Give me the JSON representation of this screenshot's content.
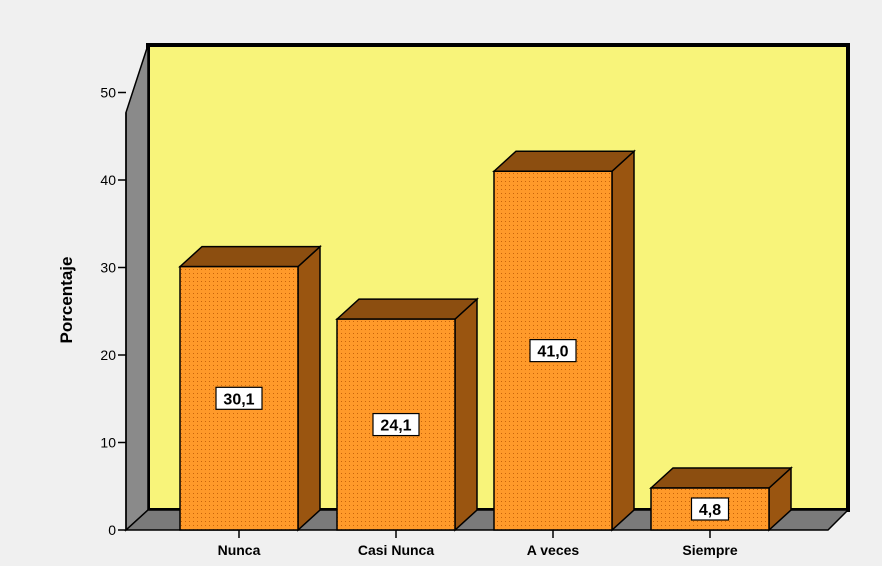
{
  "chart_data": {
    "type": "bar",
    "style": "3d",
    "categories": [
      "Nunca",
      "Casi Nunca",
      "A veces",
      "Siempre"
    ],
    "values": [
      30.1,
      24.1,
      41.0,
      4.8
    ],
    "data_labels": [
      "30,1",
      "24,1",
      "41,0",
      "4,8"
    ],
    "ylabel": "Porcentaje",
    "xlabel": "",
    "ylim": [
      0,
      50
    ],
    "yticks": [
      0,
      10,
      20,
      30,
      40,
      50
    ],
    "grid": false,
    "legend": "none",
    "colors": {
      "page_background": "#f0f0f0",
      "plot_background": "#f8f47a",
      "floor": "#7a7a7a",
      "left_wall": "#8a8a8a",
      "bar_front": "#ff9a2a",
      "bar_top": "#8c4e10",
      "bar_side": "#9a5510",
      "bar_dots": "#c8640a",
      "outline": "#000000",
      "label_box": "#ffffff"
    }
  }
}
